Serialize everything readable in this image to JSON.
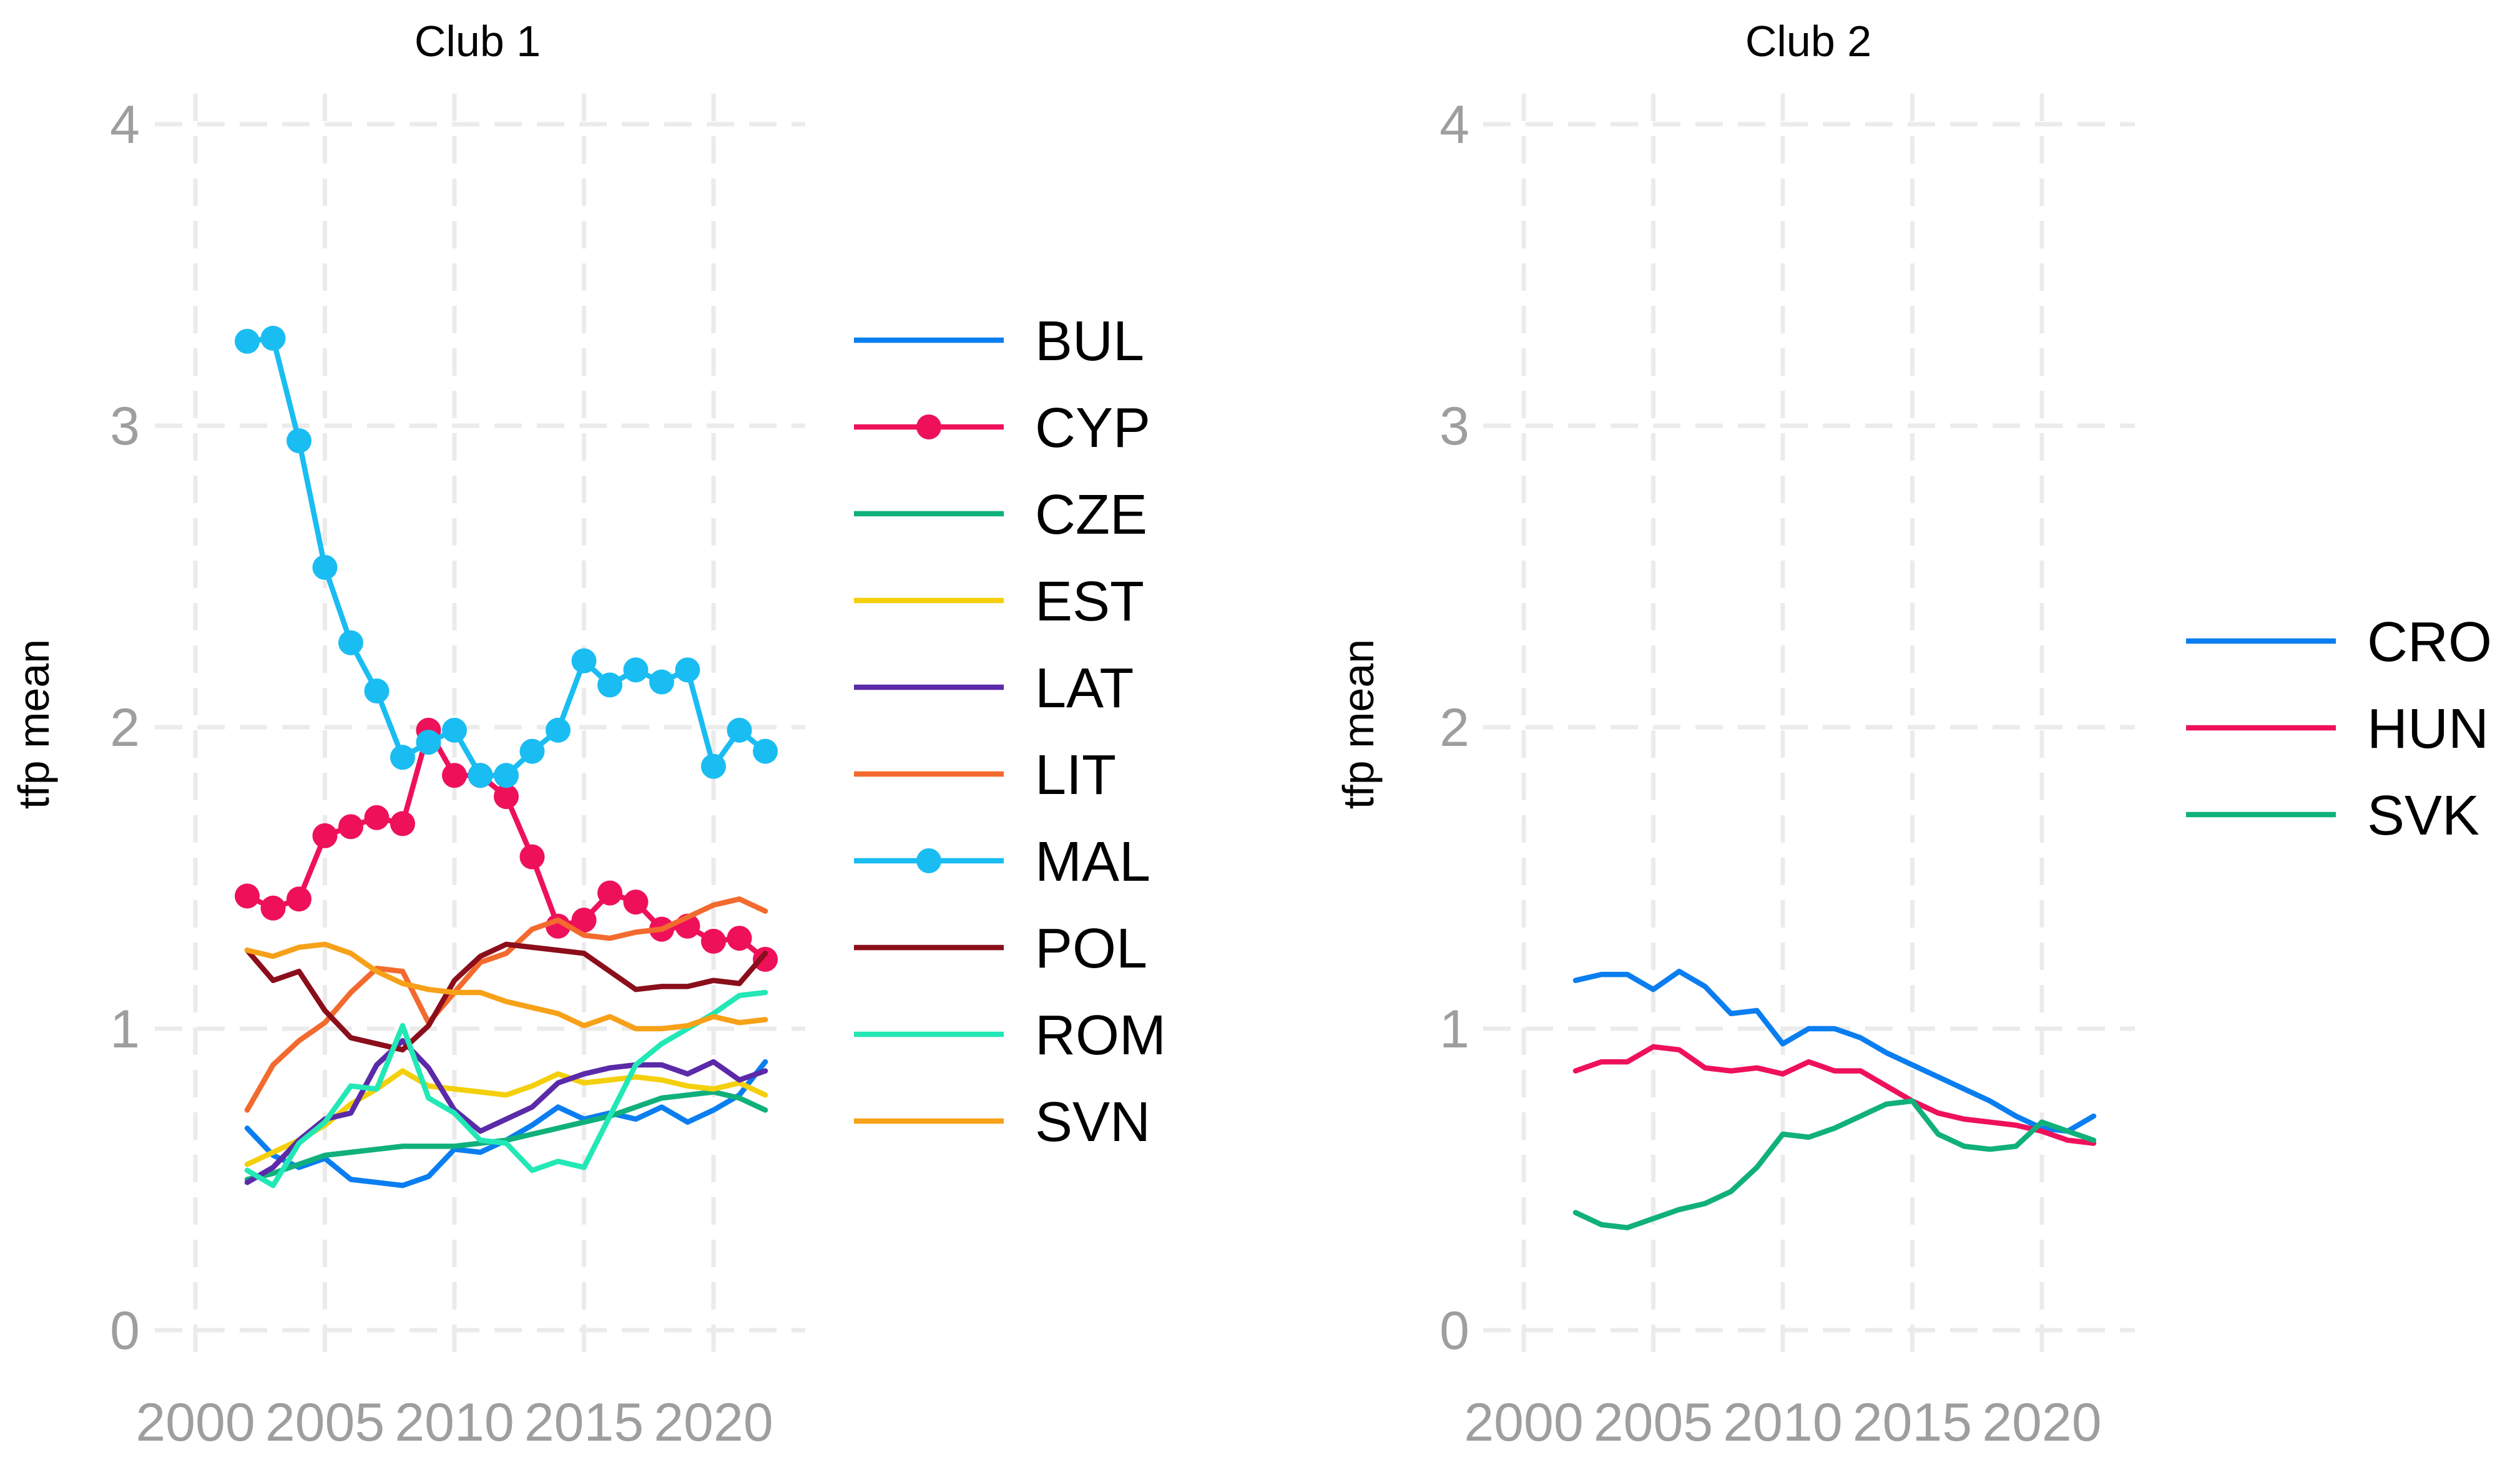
{
  "chart_data": [
    {
      "type": "line",
      "title": "Club 1",
      "xlabel": "",
      "ylabel": "tfp mean",
      "xlim": [
        1999,
        2023
      ],
      "ylim": [
        0,
        4
      ],
      "xticks": [
        2000,
        2005,
        2010,
        2015,
        2020
      ],
      "yticks": [
        0,
        1,
        2,
        3,
        4
      ],
      "legend_position": "right",
      "x": [
        2002,
        2003,
        2004,
        2005,
        2006,
        2007,
        2008,
        2009,
        2010,
        2011,
        2012,
        2013,
        2014,
        2015,
        2016,
        2017,
        2018,
        2019,
        2020,
        2021,
        2022
      ],
      "series": [
        {
          "name": "BUL",
          "color": "#0a7ef0",
          "markers": false,
          "values": [
            0.67,
            0.58,
            0.54,
            0.57,
            0.5,
            0.49,
            0.48,
            0.51,
            0.6,
            0.59,
            0.63,
            0.68,
            0.74,
            0.7,
            0.72,
            0.7,
            0.74,
            0.69,
            0.73,
            0.78,
            0.89
          ]
        },
        {
          "name": "CYP",
          "color": "#ee1159",
          "markers": true,
          "values": [
            1.44,
            1.4,
            1.43,
            1.64,
            1.67,
            1.7,
            1.68,
            1.99,
            1.84,
            1.84,
            1.77,
            1.57,
            1.34,
            1.36,
            1.45,
            1.42,
            1.33,
            1.34,
            1.29,
            1.3,
            1.23
          ]
        },
        {
          "name": "CZE",
          "color": "#10b07c",
          "markers": false,
          "values": [
            0.5,
            0.52,
            0.55,
            0.58,
            0.59,
            0.6,
            0.61,
            0.61,
            0.61,
            0.62,
            0.63,
            0.65,
            0.67,
            0.69,
            0.71,
            0.74,
            0.77,
            0.78,
            0.79,
            0.77,
            0.73
          ]
        },
        {
          "name": "EST",
          "color": "#f4cf0b",
          "markers": false,
          "values": [
            0.55,
            0.59,
            0.63,
            0.68,
            0.75,
            0.8,
            0.86,
            0.81,
            0.8,
            0.79,
            0.78,
            0.81,
            0.85,
            0.82,
            0.83,
            0.84,
            0.83,
            0.81,
            0.8,
            0.82,
            0.78
          ]
        },
        {
          "name": "LAT",
          "color": "#5b2aa8",
          "markers": false,
          "values": [
            0.49,
            0.54,
            0.63,
            0.7,
            0.72,
            0.88,
            0.96,
            0.87,
            0.73,
            0.66,
            0.7,
            0.74,
            0.82,
            0.85,
            0.87,
            0.88,
            0.88,
            0.85,
            0.89,
            0.83,
            0.86
          ]
        },
        {
          "name": "LIT",
          "color": "#f36a2e",
          "markers": false,
          "values": [
            0.73,
            0.88,
            0.96,
            1.02,
            1.12,
            1.2,
            1.19,
            1.02,
            1.12,
            1.22,
            1.25,
            1.33,
            1.36,
            1.31,
            1.3,
            1.32,
            1.33,
            1.37,
            1.41,
            1.43,
            1.39
          ]
        },
        {
          "name": "MAL",
          "color": "#19bdf2",
          "markers": true,
          "values": [
            3.28,
            3.29,
            2.95,
            2.53,
            2.28,
            2.12,
            1.9,
            1.95,
            1.99,
            1.84,
            1.84,
            1.92,
            1.99,
            2.22,
            2.14,
            2.19,
            2.15,
            2.19,
            1.87,
            1.99,
            1.92
          ]
        },
        {
          "name": "POL",
          "color": "#8b0e1b",
          "markers": false,
          "values": [
            1.26,
            1.16,
            1.19,
            1.06,
            0.97,
            0.95,
            0.93,
            1.01,
            1.16,
            1.24,
            1.28,
            1.27,
            1.26,
            1.25,
            1.19,
            1.13,
            1.14,
            1.14,
            1.16,
            1.15,
            1.25
          ]
        },
        {
          "name": "ROM",
          "color": "#22e8b5",
          "markers": false,
          "values": [
            0.53,
            0.48,
            0.62,
            0.69,
            0.81,
            0.8,
            1.01,
            0.77,
            0.72,
            0.63,
            0.62,
            0.53,
            0.56,
            0.54,
            0.71,
            0.88,
            0.95,
            1.0,
            1.05,
            1.11,
            1.12
          ]
        },
        {
          "name": "SVN",
          "color": "#f7a118",
          "markers": false,
          "values": [
            1.26,
            1.24,
            1.27,
            1.28,
            1.25,
            1.19,
            1.15,
            1.13,
            1.12,
            1.12,
            1.09,
            1.07,
            1.05,
            1.01,
            1.04,
            1.0,
            1.0,
            1.01,
            1.04,
            1.02,
            1.03
          ]
        }
      ]
    },
    {
      "type": "line",
      "title": "Club 2",
      "xlabel": "",
      "ylabel": "tfp mean",
      "xlim": [
        1999,
        2023
      ],
      "ylim": [
        0,
        4
      ],
      "xticks": [
        2000,
        2005,
        2010,
        2015,
        2020
      ],
      "yticks": [
        0,
        1,
        2,
        3,
        4
      ],
      "legend_position": "right",
      "x": [
        2002,
        2003,
        2004,
        2005,
        2006,
        2007,
        2008,
        2009,
        2010,
        2011,
        2012,
        2013,
        2014,
        2015,
        2016,
        2017,
        2018,
        2019,
        2020,
        2021,
        2022
      ],
      "series": [
        {
          "name": "CRO",
          "color": "#0a7ef0",
          "markers": false,
          "values": [
            1.16,
            1.18,
            1.18,
            1.13,
            1.19,
            1.14,
            1.05,
            1.06,
            0.95,
            1.0,
            1.0,
            0.97,
            0.92,
            0.88,
            0.84,
            0.8,
            0.76,
            0.71,
            0.67,
            0.66,
            0.71
          ]
        },
        {
          "name": "HUN",
          "color": "#ee1159",
          "markers": false,
          "values": [
            0.86,
            0.89,
            0.89,
            0.94,
            0.93,
            0.87,
            0.86,
            0.87,
            0.85,
            0.89,
            0.86,
            0.86,
            0.81,
            0.76,
            0.72,
            0.7,
            0.69,
            0.68,
            0.66,
            0.63,
            0.62
          ]
        },
        {
          "name": "SVK",
          "color": "#10b07c",
          "markers": false,
          "values": [
            0.39,
            0.35,
            0.34,
            0.37,
            0.4,
            0.42,
            0.46,
            0.54,
            0.65,
            0.64,
            0.67,
            0.71,
            0.75,
            0.76,
            0.65,
            0.61,
            0.6,
            0.61,
            0.69,
            0.66,
            0.63
          ]
        }
      ]
    }
  ]
}
